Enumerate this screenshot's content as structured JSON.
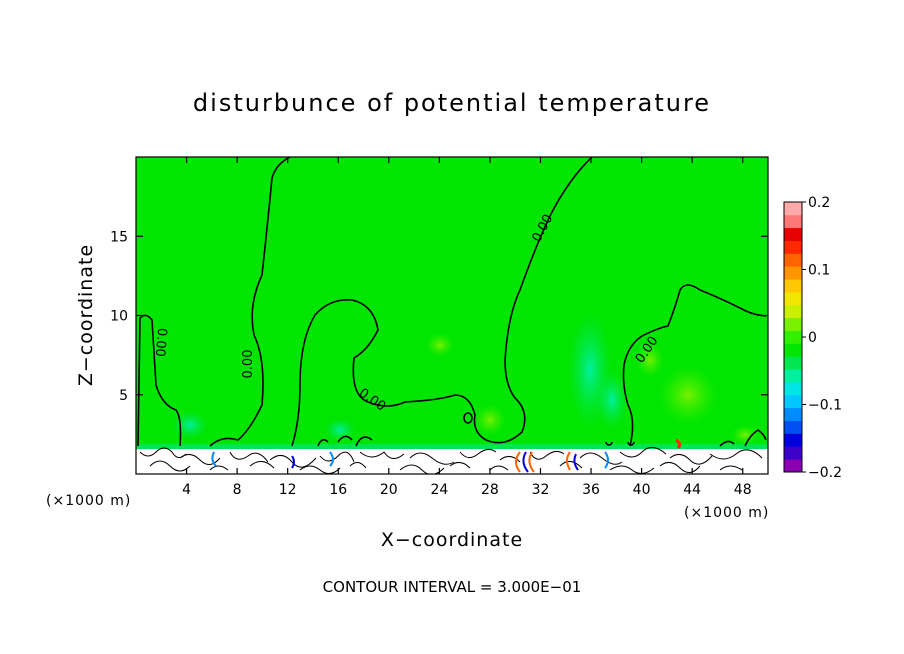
{
  "chart_data": {
    "type": "heatmap",
    "title": "disturbunce of potential temperature",
    "xlabel": "X−coordinate",
    "ylabel": "Z−coordinate",
    "x_unit_left": "(×1000 m)",
    "x_unit_right": "(×1000 m)",
    "xlim": [
      0,
      50
    ],
    "ylim": [
      0,
      20
    ],
    "x_ticks": [
      4,
      8,
      12,
      16,
      20,
      24,
      28,
      32,
      36,
      40,
      44,
      48
    ],
    "y_ticks": [
      5,
      10,
      15
    ],
    "colorbar": {
      "range": [
        -0.2,
        0.2
      ],
      "tick_values": [
        0.2,
        0.1,
        0,
        -0.1,
        -0.2
      ],
      "tick_labels": [
        "0.2",
        "0.1",
        "0",
        "−0.1",
        "−0.2"
      ],
      "colors": [
        "#8c00b4",
        "#3c00c8",
        "#0000dc",
        "#0050f0",
        "#008cff",
        "#00c8ff",
        "#00e6e6",
        "#00f0a0",
        "#00e650",
        "#00e600",
        "#32f000",
        "#78f000",
        "#c8f000",
        "#f0e600",
        "#ffc800",
        "#ff9600",
        "#ff6400",
        "#ff2800",
        "#e60000",
        "#ff7878",
        "#ffaaaa"
      ]
    },
    "field_background_color": "#00e600",
    "contour_label": "0.00",
    "contour_interval_text": "CONTOUR INTERVAL = 3.000E−01",
    "grid": false
  }
}
